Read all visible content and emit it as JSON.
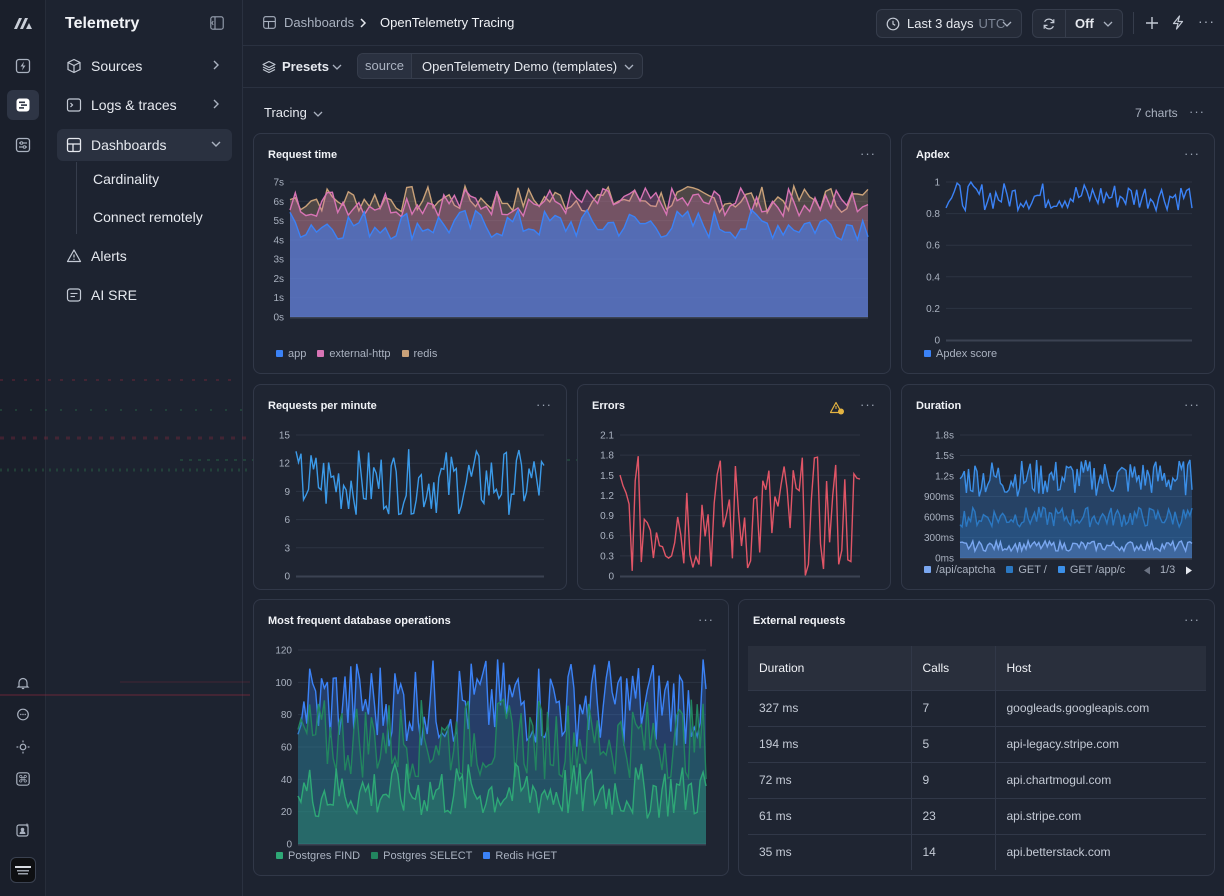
{
  "sidebar": {
    "title": "Telemetry",
    "items": [
      {
        "label": "Sources",
        "icon": "cube-icon"
      },
      {
        "label": "Logs & traces",
        "icon": "terminal-icon"
      },
      {
        "label": "Dashboards",
        "icon": "dashboard-icon"
      },
      {
        "label": "Alerts",
        "icon": "warning-icon"
      },
      {
        "label": "AI SRE",
        "icon": "chat-icon"
      }
    ],
    "dashboard_children": [
      "Cardinality",
      "Connect remotely"
    ]
  },
  "header": {
    "breadcrumb_root": "Dashboards",
    "breadcrumb_current": "OpenTelemetry Tracing",
    "time_range": "Last 3 days",
    "timezone": "UTC",
    "refresh": "Off"
  },
  "toolbar": {
    "presets": "Presets",
    "source_label": "source",
    "source_value": "OpenTelemetry Demo (templates)"
  },
  "section": {
    "title": "Tracing",
    "count": "7 charts"
  },
  "colors": {
    "accent_blue": "#3b82f6",
    "pink": "#d874b5",
    "gold": "#c9a179",
    "red": "#e05566",
    "green": "#2ea876"
  },
  "chart_data": [
    {
      "type": "area",
      "title": "Request time",
      "yticks": [
        "0s",
        "1s",
        "2s",
        "3s",
        "4s",
        "5s",
        "6s",
        "7s"
      ],
      "ylim": [
        0,
        7
      ],
      "series": [
        {
          "name": "app",
          "color": "#3b82f6",
          "range": [
            4.0,
            5.6
          ]
        },
        {
          "name": "external-http",
          "color": "#d874b5",
          "range": [
            5.2,
            6.7
          ]
        },
        {
          "name": "redis",
          "color": "#c9a179",
          "range": [
            5.4,
            6.8
          ]
        }
      ]
    },
    {
      "type": "line",
      "title": "Apdex",
      "yticks": [
        "0",
        "0.2",
        "0.4",
        "0.6",
        "0.8",
        "1"
      ],
      "ylim": [
        0,
        1
      ],
      "series": [
        {
          "name": "Apdex score",
          "color": "#3b82f6",
          "range": [
            0.82,
            1.0
          ]
        }
      ]
    },
    {
      "type": "line",
      "title": "Requests per minute",
      "yticks": [
        "0",
        "3",
        "6",
        "9",
        "12",
        "15"
      ],
      "ylim": [
        0,
        15
      ],
      "series": [
        {
          "name": "",
          "color": "#3b9ae8",
          "range": [
            6.5,
            13.5
          ]
        }
      ]
    },
    {
      "type": "line",
      "title": "Errors",
      "yticks": [
        "0",
        "0.3",
        "0.6",
        "0.9",
        "1.2",
        "1.5",
        "1.8",
        "2.1"
      ],
      "ylim": [
        0,
        2.1
      ],
      "series": [
        {
          "name": "",
          "color": "#e05566",
          "range": [
            0.0,
            1.8
          ]
        }
      ]
    },
    {
      "type": "area",
      "title": "Duration",
      "yticks": [
        "0ms",
        "300ms",
        "600ms",
        "900ms",
        "1.2s",
        "1.5s",
        "1.8s"
      ],
      "ylim": [
        0,
        1.8
      ],
      "series": [
        {
          "name": "/api/captcha",
          "color": "#7aa7f0",
          "range": [
            0.1,
            0.25
          ]
        },
        {
          "name": "GET /",
          "color": "#2b78c2",
          "range": [
            0.45,
            0.75
          ]
        },
        {
          "name": "GET /app/c",
          "color": "#3b8fe8",
          "range": [
            0.9,
            1.45
          ]
        }
      ],
      "legend_page": "1/3"
    },
    {
      "type": "area",
      "title": "Most frequent database operations",
      "yticks": [
        "0",
        "20",
        "40",
        "60",
        "80",
        "100",
        "120"
      ],
      "ylim": [
        0,
        120
      ],
      "series": [
        {
          "name": "Postgres FIND",
          "color": "#2ea876",
          "range": [
            15,
            50
          ]
        },
        {
          "name": "Postgres SELECT",
          "color": "#22855f",
          "range": [
            40,
            90
          ]
        },
        {
          "name": "Redis HGET",
          "color": "#3b82f6",
          "range": [
            60,
            115
          ]
        }
      ]
    }
  ],
  "external_requests": {
    "title": "External requests",
    "columns": [
      "Duration",
      "Calls",
      "Host"
    ],
    "rows": [
      [
        "327 ms",
        "7",
        "googleads.googleapis.com"
      ],
      [
        "194 ms",
        "5",
        "api-legacy.stripe.com"
      ],
      [
        "72 ms",
        "9",
        "api.chartmogul.com"
      ],
      [
        "61 ms",
        "23",
        "api.stripe.com"
      ],
      [
        "35 ms",
        "14",
        "api.betterstack.com"
      ]
    ]
  }
}
